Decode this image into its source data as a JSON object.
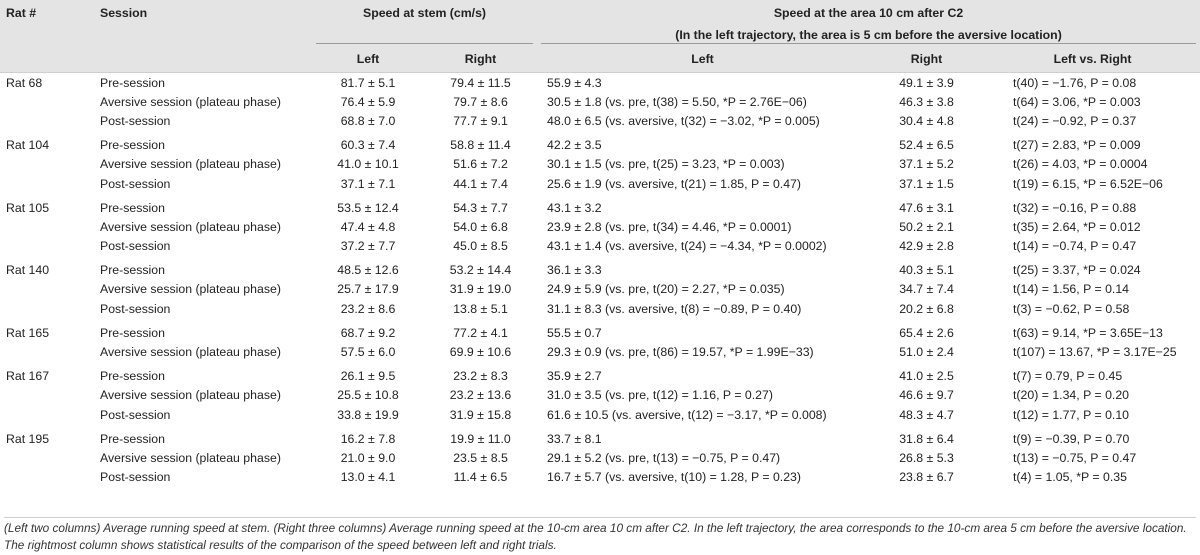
{
  "headers": {
    "rat": "Rat #",
    "session": "Session",
    "stem_group": "Speed at stem (cm/s)",
    "area_group_line1": "Speed at the area 10 cm after C2",
    "area_group_line2": "(In the left trajectory, the area is 5 cm before the aversive location)",
    "left": "Left",
    "right": "Right",
    "left2": "Left",
    "right2": "Right",
    "lvr": "Left vs. Right"
  },
  "rows": [
    {
      "rat": "Rat 68",
      "session": "Pre-session",
      "stem_left": "81.7 ± 5.1",
      "stem_right": "79.4 ± 11.5",
      "area_left": "55.9 ± 4.3",
      "area_right": "49.1 ± 3.9",
      "lvr": "t(40) = −1.76, P = 0.08"
    },
    {
      "rat": "",
      "session": "Aversive session (plateau phase)",
      "stem_left": "76.4 ± 5.9",
      "stem_right": "79.7 ± 8.6",
      "area_left": "30.5 ± 1.8 (vs. pre, t(38) = 5.50, *P = 2.76E−06)",
      "area_right": "46.3 ± 3.8",
      "lvr": "t(64) = 3.06, *P = 0.003"
    },
    {
      "rat": "",
      "session": "Post-session",
      "stem_left": "68.8 ± 7.0",
      "stem_right": "77.7 ± 9.1",
      "area_left": "48.0 ± 6.5 (vs. aversive, t(32) = −3.02, *P = 0.005)",
      "area_right": "30.4 ± 4.8",
      "lvr": "t(24) = −0.92, P = 0.37"
    },
    {
      "rat": "Rat 104",
      "session": "Pre-session",
      "stem_left": "60.3 ± 7.4",
      "stem_right": "58.8 ± 11.4",
      "area_left": "42.2 ± 3.5",
      "area_right": "52.4 ± 6.5",
      "lvr": "t(27) = 2.83, *P = 0.009"
    },
    {
      "rat": "",
      "session": "Aversive session (plateau phase)",
      "stem_left": "41.0 ± 10.1",
      "stem_right": "51.6 ± 7.2",
      "area_left": "30.1 ± 1.5 (vs. pre, t(25) = 3.23, *P = 0.003)",
      "area_right": "37.1 ± 5.2",
      "lvr": "t(26) = 4.03, *P = 0.0004"
    },
    {
      "rat": "",
      "session": "Post-session",
      "stem_left": "37.1 ± 7.1",
      "stem_right": "44.1 ± 7.4",
      "area_left": "25.6 ± 1.9 (vs. aversive, t(21) = 1.85, P = 0.47)",
      "area_right": "37.1 ± 1.5",
      "lvr": "t(19) = 6.15, *P = 6.52E−06"
    },
    {
      "rat": "Rat 105",
      "session": "Pre-session",
      "stem_left": "53.5 ± 12.4",
      "stem_right": "54.3 ± 7.7",
      "area_left": "43.1 ± 3.2",
      "area_right": "47.6 ± 3.1",
      "lvr": "t(32) = −0.16, P = 0.88"
    },
    {
      "rat": "",
      "session": "Aversive session (plateau phase)",
      "stem_left": "47.4 ± 4.8",
      "stem_right": "54.0 ± 6.8",
      "area_left": "23.9 ± 2.8 (vs. pre, t(34) = 4.46, *P = 0.0001)",
      "area_right": "50.2 ± 2.1",
      "lvr": "t(35) = 2.64, *P = 0.012"
    },
    {
      "rat": "",
      "session": "Post-session",
      "stem_left": "37.2 ± 7.7",
      "stem_right": "45.0 ± 8.5",
      "area_left": "43.1 ± 1.4 (vs. aversive, t(24) = −4.34, *P = 0.0002)",
      "area_right": "42.9 ± 2.8",
      "lvr": "t(14) = −0.74, P = 0.47"
    },
    {
      "rat": "Rat 140",
      "session": "Pre-session",
      "stem_left": "48.5 ± 12.6",
      "stem_right": "53.2 ± 14.4",
      "area_left": "36.1 ± 3.3",
      "area_right": "40.3 ± 5.1",
      "lvr": "t(25) = 3.37, *P = 0.024"
    },
    {
      "rat": "",
      "session": "Aversive session (plateau phase)",
      "stem_left": "25.7 ± 17.9",
      "stem_right": "31.9 ± 19.0",
      "area_left": "24.9 ± 5.9 (vs. pre, t(20) = 2.27, *P = 0.035)",
      "area_right": "34.7 ± 7.4",
      "lvr": "t(14) = 1.56, P = 0.14"
    },
    {
      "rat": "",
      "session": "Post-session",
      "stem_left": "23.2 ± 8.6",
      "stem_right": "13.8 ± 5.1",
      "area_left": "31.1 ± 8.3 (vs. aversive, t(8) = −0.89, P = 0.40)",
      "area_right": "20.2 ± 6.8",
      "lvr": "t(3) = −0.62, P = 0.58"
    },
    {
      "rat": "Rat 165",
      "session": "Pre-session",
      "stem_left": "68.7 ± 9.2",
      "stem_right": "77.2 ± 4.1",
      "area_left": "55.5 ± 0.7",
      "area_right": "65.4 ± 2.6",
      "lvr": "t(63) = 9.14, *P = 3.65E−13"
    },
    {
      "rat": "",
      "session": "Aversive session (plateau phase)",
      "stem_left": "57.5 ± 6.0",
      "stem_right": "69.9 ± 10.6",
      "area_left": "29.3 ± 0.9 (vs. pre, t(86) = 19.57, *P = 1.99E−33)",
      "area_right": "51.0 ± 2.4",
      "lvr": "t(107) = 13.67, *P = 3.17E−25"
    },
    {
      "rat": "Rat 167",
      "session": "Pre-session",
      "stem_left": "26.1 ± 9.5",
      "stem_right": "23.2 ± 8.3",
      "area_left": "35.9 ± 2.7",
      "area_right": "41.0 ± 2.5",
      "lvr": "t(7) = 0.79, P = 0.45"
    },
    {
      "rat": "",
      "session": "Aversive session (plateau phase)",
      "stem_left": "25.5 ± 10.8",
      "stem_right": "23.2 ± 13.6",
      "area_left": "31.0 ± 3.5 (vs. pre, t(12) = 1.16, P = 0.27)",
      "area_right": "46.6 ± 9.7",
      "lvr": "t(20) = 1.34, P = 0.20"
    },
    {
      "rat": "",
      "session": "Post-session",
      "stem_left": "33.8 ± 19.9",
      "stem_right": "31.9 ± 15.8",
      "area_left": "61.6 ± 10.5 (vs. aversive, t(12) = −3.17, *P = 0.008)",
      "area_right": "48.3 ± 4.7",
      "lvr": "t(12) = 1.77, P = 0.10"
    },
    {
      "rat": "Rat 195",
      "session": "Pre-session",
      "stem_left": "16.2 ± 7.8",
      "stem_right": "19.9 ± 11.0",
      "area_left": "33.7 ± 8.1",
      "area_right": "31.8 ± 6.4",
      "lvr": "t(9) = −0.39, P = 0.70"
    },
    {
      "rat": "",
      "session": "Aversive session (plateau phase)",
      "stem_left": "21.0 ± 9.0",
      "stem_right": "23.5 ± 8.5",
      "area_left": "29.1 ± 5.2 (vs. pre, t(13) = −0.75, P = 0.47)",
      "area_right": "26.8 ± 5.3",
      "lvr": "t(13) = −0.75, P = 0.47"
    },
    {
      "rat": "",
      "session": "Post-session",
      "stem_left": "13.0 ± 4.1",
      "stem_right": "11.4 ± 6.5",
      "area_left": "16.7 ± 5.7 (vs. aversive, t(10) = 1.28, P = 0.23)",
      "area_right": "23.8 ± 6.7",
      "lvr": "t(4) = 1.05, *P = 0.35"
    }
  ],
  "caption": "(Left two columns) Average running speed at stem. (Right three columns) Average running speed at the 10-cm area 10 cm after C2. In the left trajectory, the area corresponds to the 10-cm area 5 cm before the aversive location. The rightmost column shows statistical results of the comparison of the speed between left and right trials."
}
